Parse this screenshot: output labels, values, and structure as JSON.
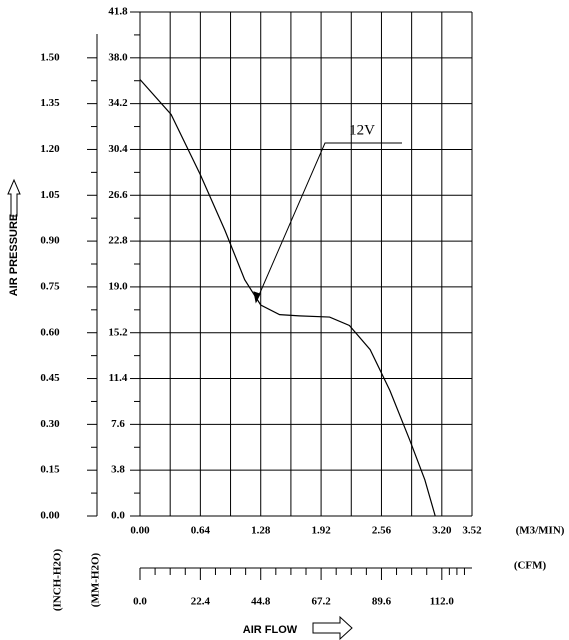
{
  "chart_data": {
    "type": "line",
    "x_label": "AIR FLOW",
    "y_label": "AIR PRESSURE",
    "x_unit": "(M3/MIN)",
    "x2_unit": "(CFM)",
    "y_unit": "(MM-H2O)",
    "y2_unit": "(INCH-H2O)",
    "annotation": "12V",
    "x": [
      0,
      0.33,
      0.64,
      0.9,
      1.11,
      1.28,
      1.48,
      1.69,
      2.01,
      2.22,
      2.44,
      2.65,
      2.86,
      3.02,
      3.13
    ],
    "values": [
      36.2,
      33.3,
      28.3,
      23.7,
      19.6,
      17.5,
      16.7,
      16.6,
      16.5,
      15.8,
      13.8,
      10.4,
      6.3,
      3.0,
      0
    ],
    "color": "#000000",
    "xlim": [
      0,
      3.52
    ],
    "xticks": [
      {
        "value": 0,
        "label": "0.00"
      },
      0.64,
      1.28,
      1.92,
      2.56,
      {
        "value": 3.2,
        "label": "3.20"
      },
      3.52
    ],
    "x2lim": [
      0,
      123.2
    ],
    "x2ticks": [
      {
        "value": 0,
        "label": "0.0"
      },
      22.4,
      44.8,
      67.2,
      89.6,
      {
        "value": 112,
        "label": "112.0"
      }
    ],
    "ylim": [
      0,
      41.8
    ],
    "yticks": [
      {
        "value": 0,
        "label": "0.0"
      },
      3.8,
      7.6,
      11.4,
      15.2,
      {
        "value": 19,
        "label": "19.0"
      },
      22.8,
      26.6,
      30.4,
      34.2,
      {
        "value": 38,
        "label": "38.0"
      },
      41.8
    ],
    "y2lim": [
      0,
      1.65
    ],
    "y2ticks": [
      {
        "value": 0,
        "label": "0.00"
      },
      0.15,
      {
        "value": 0.3,
        "label": "0.30"
      },
      0.45,
      {
        "value": 0.6,
        "label": "0.60"
      },
      0.75,
      {
        "value": 0.9,
        "label": "0.90"
      },
      1.05,
      {
        "value": 1.2,
        "label": "1.20"
      },
      1.35,
      {
        "value": 1.5,
        "label": "1.50"
      }
    ],
    "grid": true
  }
}
